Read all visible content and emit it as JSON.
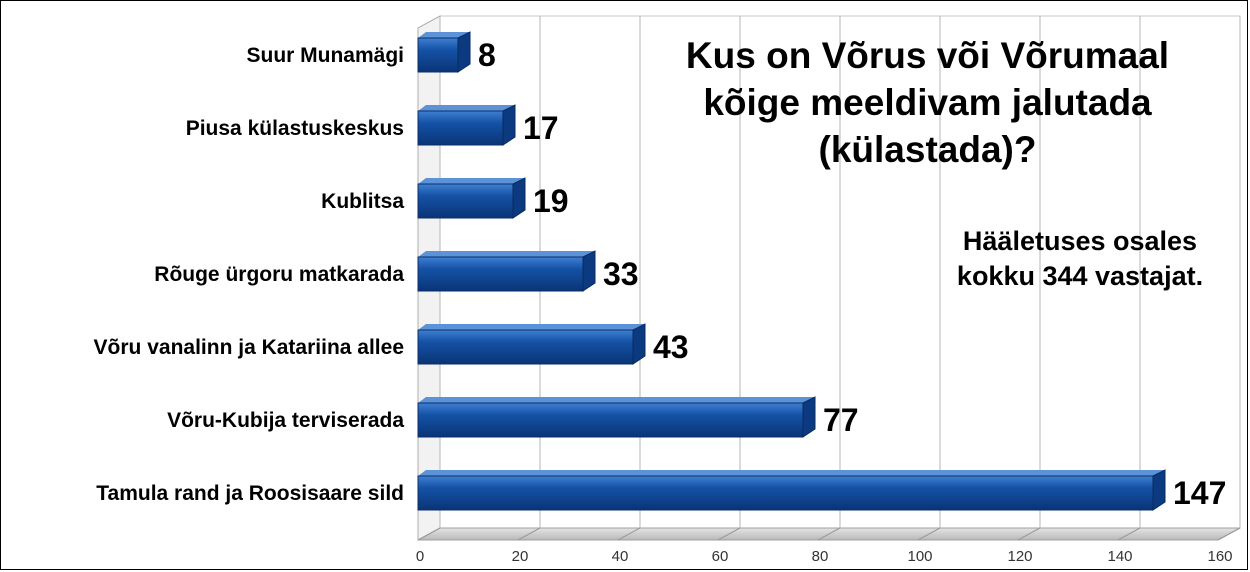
{
  "chart_data": {
    "type": "bar",
    "orientation": "horizontal",
    "title_lines": [
      "Kus on Võrus või Võrumaal",
      "kõige meeldivam jalutada",
      "(külastada)?"
    ],
    "annotation_lines": [
      "Hääletuses osales",
      "kokku 344 vastajat."
    ],
    "categories": [
      "Suur Munamägi",
      "Piusa külastuskeskus",
      "Kublitsa",
      "Rõuge ürgoru matkarada",
      "Võru vanalinn ja Katariina allee",
      "Võru-Kubija terviserada",
      "Tamula rand ja Roosisaare sild"
    ],
    "values": [
      8,
      17,
      19,
      33,
      43,
      77,
      147
    ],
    "value_labels": [
      "8",
      "17",
      "19",
      "33",
      "43",
      "77",
      "147"
    ],
    "xlim": [
      0,
      160
    ],
    "x_ticks": [
      "0",
      "20",
      "40",
      "60",
      "80",
      "100",
      "120",
      "140",
      "160"
    ],
    "grid": true,
    "legend": "none",
    "bar_color": "#0f4aa0"
  }
}
